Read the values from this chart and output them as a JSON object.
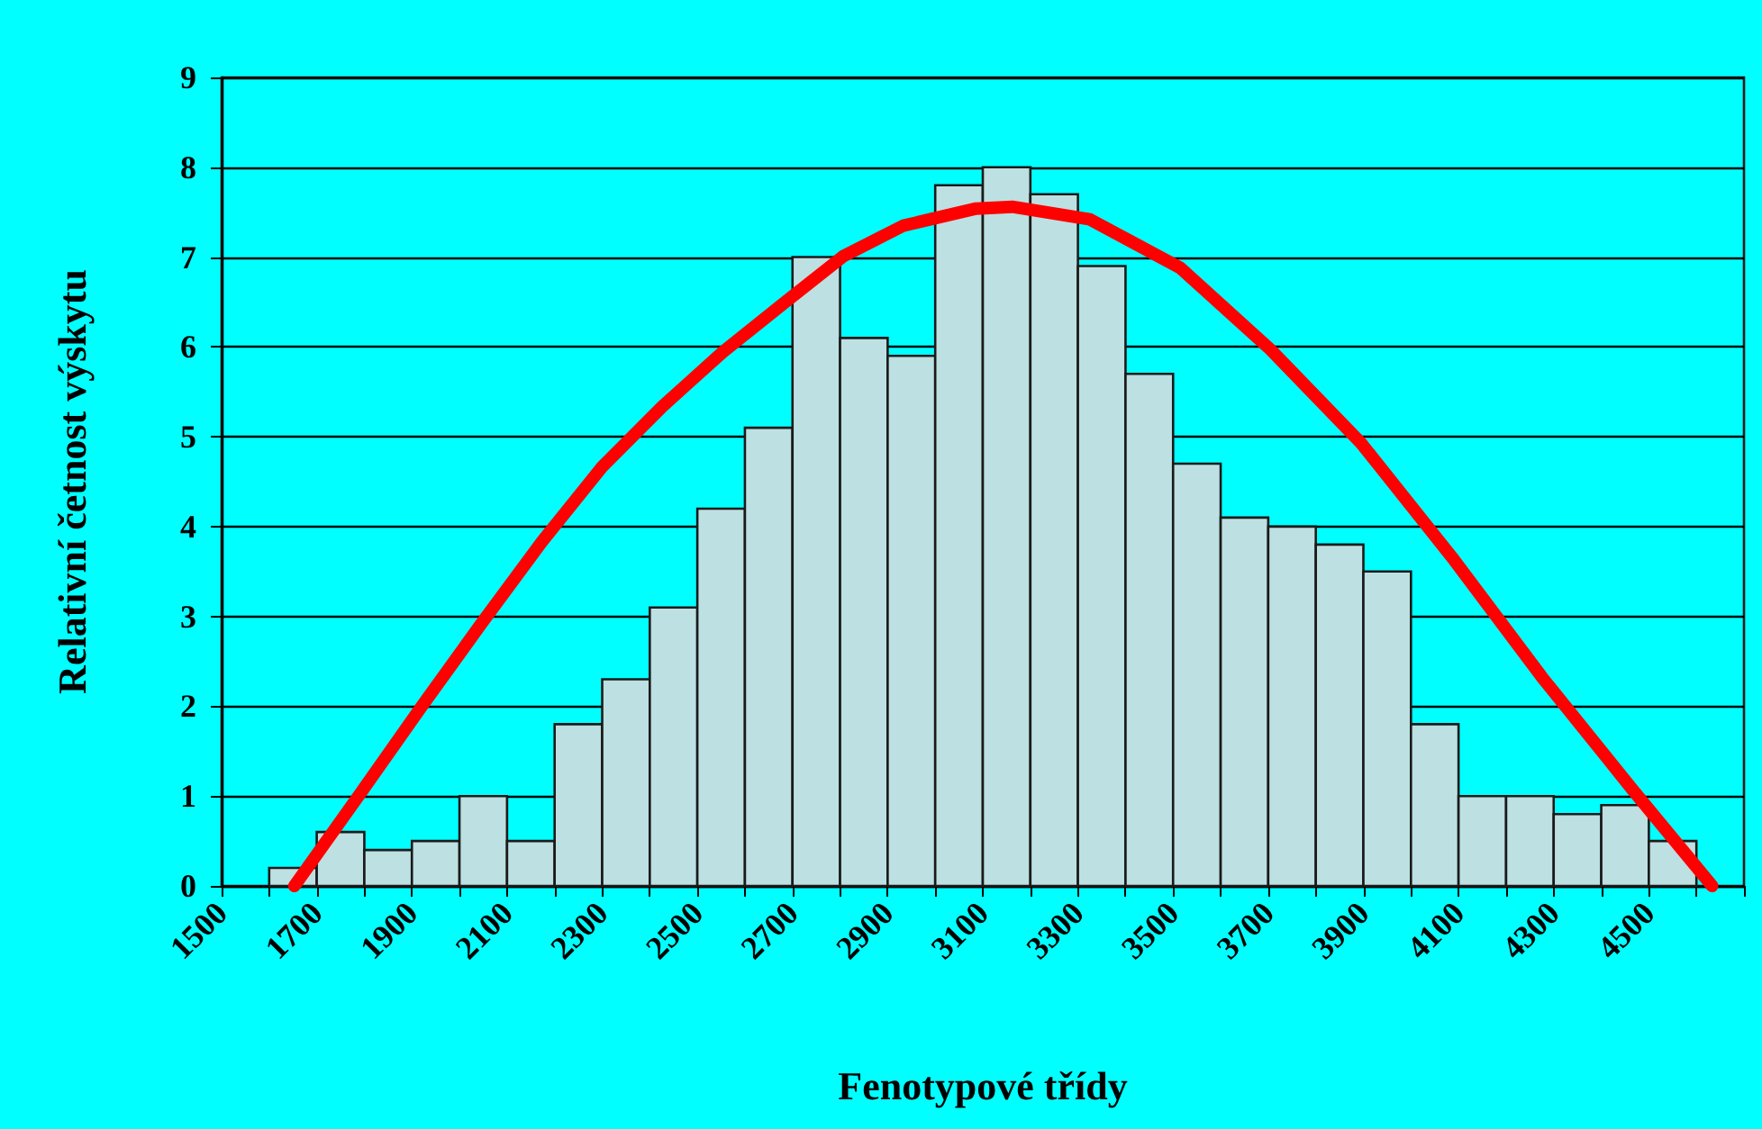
{
  "chart_data": {
    "type": "histogram",
    "xlabel": "Fenotypové třídy",
    "ylabel": "Relativní četnost výskytu",
    "bins": [
      1600,
      1700,
      1800,
      1900,
      2000,
      2100,
      2200,
      2300,
      2400,
      2500,
      2600,
      2700,
      2800,
      2900,
      3000,
      3100,
      3200,
      3300,
      3400,
      3500,
      3600,
      3700,
      3800,
      3900,
      4000,
      4100,
      4200,
      4300,
      4400,
      4500,
      4600
    ],
    "series": [
      {
        "color": "#bde0e2",
        "values": [
          0.2,
          0.6,
          0.4,
          0.5,
          1.0,
          0.5,
          1.8,
          2.3,
          3.1,
          4.2,
          5.1,
          7.0,
          6.1,
          5.9,
          7.8,
          8.0,
          7.7,
          6.9,
          5.7,
          4.7,
          4.1,
          4.0,
          3.8,
          3.5,
          1.8,
          1.0,
          1.0,
          0.8,
          0.9,
          0.5
        ]
      },
      {
        "type": "line",
        "color": "#ff0000",
        "x": [
          1653,
          1793,
          1918,
          2046,
          2173,
          2299,
          2427,
          2553,
          2680,
          2807,
          2933,
          3086,
          3162,
          3325,
          3515,
          3705,
          3895,
          4086,
          4276,
          4466,
          4633
        ],
        "values": [
          0,
          1.04,
          1.98,
          2.92,
          3.83,
          4.66,
          5.34,
          5.94,
          6.48,
          7.01,
          7.35,
          7.54,
          7.56,
          7.42,
          6.88,
          5.97,
          4.93,
          3.66,
          2.32,
          1.07,
          0
        ]
      }
    ],
    "xlim": [
      1500,
      4700
    ],
    "xticks": [
      1500,
      {
        "value": 1600,
        "label": null
      },
      1700,
      {
        "value": 1800,
        "label": null
      },
      1900,
      {
        "value": 2000,
        "label": null
      },
      2100,
      {
        "value": 2200,
        "label": null
      },
      2300,
      {
        "value": 2400,
        "label": null
      },
      2500,
      {
        "value": 2600,
        "label": null
      },
      2700,
      {
        "value": 2800,
        "label": null
      },
      2900,
      {
        "value": 3000,
        "label": null
      },
      3100,
      {
        "value": 3200,
        "label": null
      },
      3300,
      {
        "value": 3400,
        "label": null
      },
      3500,
      {
        "value": 3600,
        "label": null
      },
      3700,
      {
        "value": 3800,
        "label": null
      },
      3900,
      {
        "value": 4000,
        "label": null
      },
      4100,
      {
        "value": 4200,
        "label": null
      },
      4300,
      {
        "value": 4400,
        "label": null
      },
      4500,
      {
        "value": 4600,
        "label": null
      },
      {
        "value": 4700,
        "label": null
      }
    ],
    "ylim": [
      0,
      9
    ],
    "yticks": [
      0,
      1,
      2,
      3,
      4,
      5,
      6,
      7,
      8,
      9
    ],
    "grid": "y",
    "line_style": "solid"
  }
}
